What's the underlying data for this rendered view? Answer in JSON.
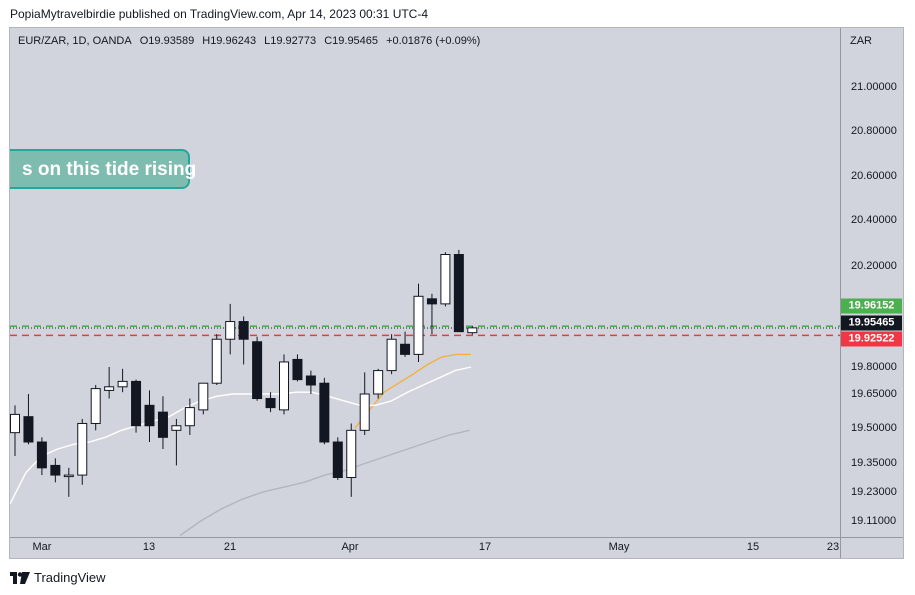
{
  "header": {
    "publisher_line": "PopiaMytravelbirdie published on TradingView.com, Apr 14, 2023 00:31 UTC-4"
  },
  "legend": {
    "symbol": "EUR/ZAR, 1D, OANDA",
    "open": "O19.93589",
    "high": "H19.96243",
    "low": "L19.92773",
    "close": "C19.95465",
    "change": "+0.01876 (+0.09%)"
  },
  "callout": {
    "text": "s on this tide rising"
  },
  "footer": {
    "brand": "TradingView"
  },
  "chart_data": {
    "type": "candlestick",
    "currency": "ZAR",
    "price_ticks": [
      "21.00000",
      "20.80000",
      "20.60000",
      "20.40000",
      "20.20000",
      "19.80000",
      "19.65000",
      "19.50000",
      "19.35000",
      "19.23000",
      "19.11000"
    ],
    "time_ticks": [
      "Mar",
      "13",
      "21",
      "Apr",
      "17",
      "May",
      "15",
      "23"
    ],
    "price_tags": [
      {
        "label": "19.96152",
        "value": 19.96152,
        "bg": "#4caf50",
        "fg": "#ffffff"
      },
      {
        "label": "19.95465",
        "value": 19.95465,
        "bg": "#131722",
        "fg": "#ffffff"
      },
      {
        "label": "19.92522",
        "value": 19.92522,
        "bg": "#f23645",
        "fg": "#ffffff"
      }
    ],
    "horizontal_lines": [
      {
        "value": 19.96152,
        "color": "#4caf50",
        "style": "dashed"
      },
      {
        "value": 19.92522,
        "color": "#f23645",
        "style": "dashed"
      },
      {
        "value": 19.95465,
        "color": "#131722",
        "style": "dotted"
      }
    ],
    "candles": [
      {
        "o": 19.48,
        "h": 19.6,
        "l": 19.38,
        "c": 19.56
      },
      {
        "o": 19.55,
        "h": 19.65,
        "l": 19.43,
        "c": 19.44
      },
      {
        "o": 19.44,
        "h": 19.46,
        "l": 19.3,
        "c": 19.33
      },
      {
        "o": 19.34,
        "h": 19.37,
        "l": 19.27,
        "c": 19.3
      },
      {
        "o": 19.3,
        "h": 19.33,
        "l": 19.21,
        "c": 19.3
      },
      {
        "o": 19.3,
        "h": 19.54,
        "l": 19.26,
        "c": 19.52
      },
      {
        "o": 19.52,
        "h": 19.7,
        "l": 19.49,
        "c": 19.68
      },
      {
        "o": 19.67,
        "h": 19.8,
        "l": 19.63,
        "c": 19.69
      },
      {
        "o": 19.69,
        "h": 19.79,
        "l": 19.66,
        "c": 19.72
      },
      {
        "o": 19.72,
        "h": 19.73,
        "l": 19.48,
        "c": 19.51
      },
      {
        "o": 19.6,
        "h": 19.67,
        "l": 19.44,
        "c": 19.51
      },
      {
        "o": 19.57,
        "h": 19.64,
        "l": 19.41,
        "c": 19.46
      },
      {
        "o": 19.49,
        "h": 19.54,
        "l": 19.34,
        "c": 19.51
      },
      {
        "o": 19.51,
        "h": 19.63,
        "l": 19.47,
        "c": 19.59
      },
      {
        "o": 19.58,
        "h": 19.7,
        "l": 19.56,
        "c": 19.71
      },
      {
        "o": 19.71,
        "h": 19.93,
        "l": 19.7,
        "c": 19.91
      },
      {
        "o": 19.91,
        "h": 20.05,
        "l": 19.85,
        "c": 19.98
      },
      {
        "o": 19.98,
        "h": 20.0,
        "l": 19.81,
        "c": 19.91
      },
      {
        "o": 19.9,
        "h": 19.92,
        "l": 19.62,
        "c": 19.63
      },
      {
        "o": 19.63,
        "h": 19.66,
        "l": 19.57,
        "c": 19.59
      },
      {
        "o": 19.58,
        "h": 19.85,
        "l": 19.56,
        "c": 19.82
      },
      {
        "o": 19.83,
        "h": 19.85,
        "l": 19.72,
        "c": 19.73
      },
      {
        "o": 19.75,
        "h": 19.78,
        "l": 19.65,
        "c": 19.7
      },
      {
        "o": 19.71,
        "h": 19.74,
        "l": 19.43,
        "c": 19.44
      },
      {
        "o": 19.44,
        "h": 19.46,
        "l": 19.28,
        "c": 19.29
      },
      {
        "o": 19.29,
        "h": 19.52,
        "l": 19.21,
        "c": 19.49
      },
      {
        "o": 19.49,
        "h": 19.77,
        "l": 19.47,
        "c": 19.65
      },
      {
        "o": 19.65,
        "h": 19.79,
        "l": 19.63,
        "c": 19.78
      },
      {
        "o": 19.78,
        "h": 19.93,
        "l": 19.76,
        "c": 19.91
      },
      {
        "o": 19.89,
        "h": 19.94,
        "l": 19.84,
        "c": 19.85
      },
      {
        "o": 19.85,
        "h": 20.13,
        "l": 19.82,
        "c": 20.08
      },
      {
        "o": 20.07,
        "h": 20.09,
        "l": 19.93,
        "c": 20.05
      },
      {
        "o": 20.05,
        "h": 20.26,
        "l": 20.04,
        "c": 20.25
      },
      {
        "o": 20.25,
        "h": 20.27,
        "l": 19.94,
        "c": 19.94
      },
      {
        "o": 19.936,
        "h": 19.962,
        "l": 19.928,
        "c": 19.955
      }
    ],
    "moving_averages": [
      {
        "color": "#f5b041",
        "values": [
          19.5,
          19.58,
          19.66,
          19.71,
          19.76,
          19.81,
          19.84,
          19.85,
          19.85
        ]
      },
      {
        "color": "#ffffff",
        "values": [
          19.18,
          19.31,
          19.38,
          19.41,
          19.43,
          19.44,
          19.46,
          19.49,
          19.51,
          19.53,
          19.55,
          19.59,
          19.62,
          19.64,
          19.65,
          19.65,
          19.65,
          19.65,
          19.66,
          19.66,
          19.64,
          19.62,
          19.6,
          19.6,
          19.62,
          19.66,
          19.7,
          19.74,
          19.78,
          19.8
        ]
      },
      {
        "color": "#b2b5be",
        "values": [
          19.05,
          19.11,
          19.16,
          19.2,
          19.23,
          19.25,
          19.27,
          19.3,
          19.32,
          19.35,
          19.38,
          19.41,
          19.44,
          19.47,
          19.49
        ]
      }
    ]
  }
}
